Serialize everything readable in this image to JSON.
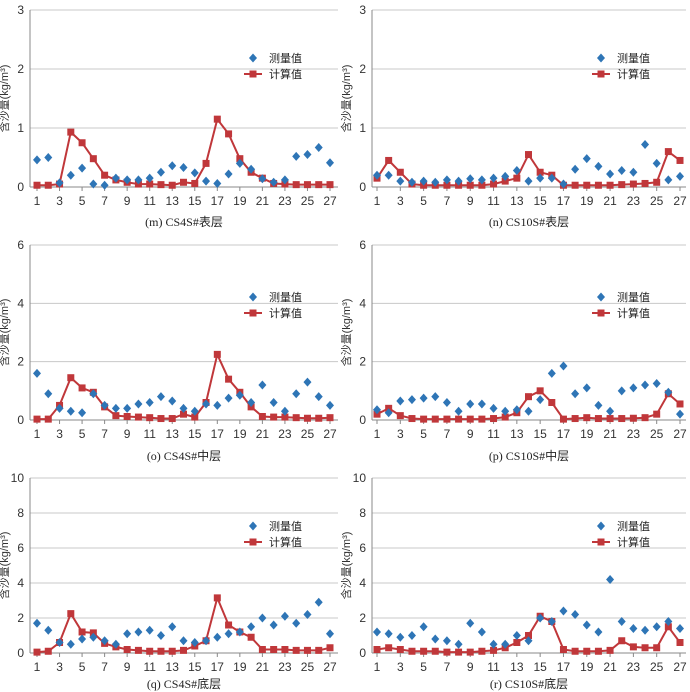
{
  "ylabel": "含沙量(kg/m³)",
  "legend": {
    "measured": "测量值",
    "computed": "计算值"
  },
  "colors": {
    "measured": "#2e75b6",
    "computed": "#c0373a",
    "grid": "#c8c8c8",
    "axis": "#888888"
  },
  "x_ticks": [
    1,
    3,
    5,
    7,
    9,
    11,
    13,
    15,
    17,
    19,
    21,
    23,
    25,
    27
  ],
  "chart_data": [
    {
      "type": "line",
      "caption": "(m) CS4S#表层",
      "ylabel": "含沙量(kg/m³)",
      "ylim": [
        0,
        3
      ],
      "yticks": [
        0,
        1,
        2,
        3
      ],
      "x": [
        1,
        2,
        3,
        4,
        5,
        6,
        7,
        8,
        9,
        10,
        11,
        12,
        13,
        14,
        15,
        16,
        17,
        18,
        19,
        20,
        21,
        22,
        23,
        24,
        25,
        26,
        27
      ],
      "series": [
        {
          "name": "测量值",
          "style": "markers",
          "values": [
            0.46,
            0.5,
            0.07,
            0.2,
            0.32,
            0.05,
            0.03,
            0.15,
            0.12,
            0.12,
            0.15,
            0.25,
            0.36,
            0.33,
            0.24,
            0.1,
            0.06,
            0.22,
            0.4,
            0.3,
            0.14,
            0.08,
            0.12,
            0.52,
            0.55,
            0.67,
            0.41
          ]
        },
        {
          "name": "计算值",
          "style": "line",
          "values": [
            0.03,
            0.03,
            0.05,
            0.93,
            0.75,
            0.48,
            0.2,
            0.12,
            0.08,
            0.05,
            0.05,
            0.04,
            0.03,
            0.08,
            0.06,
            0.4,
            1.15,
            0.9,
            0.48,
            0.25,
            0.15,
            0.06,
            0.05,
            0.04,
            0.04,
            0.04,
            0.04
          ]
        }
      ],
      "legend_position": "right"
    },
    {
      "type": "line",
      "caption": "(n) CS10S#表层",
      "ylabel": "含沙量(kg/m³)",
      "ylim": [
        0,
        3
      ],
      "yticks": [
        0,
        1,
        2,
        3
      ],
      "x": [
        1,
        2,
        3,
        4,
        5,
        6,
        7,
        8,
        9,
        10,
        11,
        12,
        13,
        14,
        15,
        16,
        17,
        18,
        19,
        20,
        21,
        22,
        23,
        24,
        25,
        26,
        27
      ],
      "series": [
        {
          "name": "测量值",
          "style": "markers",
          "values": [
            0.2,
            0.2,
            0.1,
            0.08,
            0.1,
            0.08,
            0.12,
            0.1,
            0.14,
            0.12,
            0.15,
            0.18,
            0.28,
            0.1,
            0.15,
            0.15,
            0.05,
            0.3,
            0.48,
            0.35,
            0.22,
            0.28,
            0.25,
            0.72,
            0.4,
            0.12,
            0.18
          ]
        },
        {
          "name": "计算值",
          "style": "line",
          "values": [
            0.15,
            0.45,
            0.25,
            0.05,
            0.03,
            0.03,
            0.03,
            0.03,
            0.03,
            0.03,
            0.05,
            0.1,
            0.15,
            0.55,
            0.25,
            0.2,
            0.03,
            0.03,
            0.03,
            0.03,
            0.03,
            0.04,
            0.05,
            0.06,
            0.08,
            0.6,
            0.45
          ]
        }
      ],
      "legend_position": "right"
    },
    {
      "type": "line",
      "caption": "(o) CS4S#中层",
      "ylabel": "含沙量(kg/m³)",
      "ylim": [
        0,
        6
      ],
      "yticks": [
        0,
        2,
        4,
        6
      ],
      "x": [
        1,
        2,
        3,
        4,
        5,
        6,
        7,
        8,
        9,
        10,
        11,
        12,
        13,
        14,
        15,
        16,
        17,
        18,
        19,
        20,
        21,
        22,
        23,
        24,
        25,
        26,
        27
      ],
      "series": [
        {
          "name": "测量值",
          "style": "markers",
          "values": [
            1.6,
            0.9,
            0.4,
            0.3,
            0.25,
            0.9,
            0.5,
            0.4,
            0.4,
            0.55,
            0.6,
            0.8,
            0.65,
            0.4,
            0.3,
            0.55,
            0.5,
            0.75,
            0.85,
            0.6,
            1.2,
            0.6,
            0.3,
            0.9,
            1.3,
            0.8,
            0.5
          ]
        },
        {
          "name": "计算值",
          "style": "line",
          "values": [
            0.03,
            0.03,
            0.5,
            1.45,
            1.1,
            0.95,
            0.45,
            0.15,
            0.12,
            0.1,
            0.08,
            0.05,
            0.05,
            0.2,
            0.1,
            0.6,
            2.25,
            1.4,
            0.95,
            0.45,
            0.12,
            0.1,
            0.1,
            0.08,
            0.06,
            0.06,
            0.08
          ]
        }
      ],
      "legend_position": "right"
    },
    {
      "type": "line",
      "caption": "(p) CS10S#中层",
      "ylabel": "含沙量(kg/m³)",
      "ylim": [
        0,
        6
      ],
      "yticks": [
        0,
        2,
        4,
        6
      ],
      "x": [
        1,
        2,
        3,
        4,
        5,
        6,
        7,
        8,
        9,
        10,
        11,
        12,
        13,
        14,
        15,
        16,
        17,
        18,
        19,
        20,
        21,
        22,
        23,
        24,
        25,
        26,
        27
      ],
      "series": [
        {
          "name": "测量值",
          "style": "markers",
          "values": [
            0.35,
            0.25,
            0.65,
            0.7,
            0.75,
            0.8,
            0.6,
            0.3,
            0.55,
            0.55,
            0.4,
            0.3,
            0.35,
            0.3,
            0.7,
            1.6,
            1.85,
            0.9,
            1.1,
            0.5,
            0.3,
            1.0,
            1.1,
            1.2,
            1.25,
            0.95,
            0.2
          ]
        },
        {
          "name": "计算值",
          "style": "line",
          "values": [
            0.2,
            0.4,
            0.15,
            0.05,
            0.03,
            0.03,
            0.03,
            0.03,
            0.03,
            0.03,
            0.05,
            0.1,
            0.25,
            0.8,
            1.0,
            0.6,
            0.03,
            0.05,
            0.08,
            0.05,
            0.05,
            0.05,
            0.06,
            0.08,
            0.2,
            0.9,
            0.55
          ]
        }
      ],
      "legend_position": "right"
    },
    {
      "type": "line",
      "caption": "(q) CS4S#底层",
      "ylabel": "含沙量(kg/m³)",
      "ylim": [
        0,
        10
      ],
      "yticks": [
        0,
        2,
        4,
        6,
        8,
        10
      ],
      "x": [
        1,
        2,
        3,
        4,
        5,
        6,
        7,
        8,
        9,
        10,
        11,
        12,
        13,
        14,
        15,
        16,
        17,
        18,
        19,
        20,
        21,
        22,
        23,
        24,
        25,
        26,
        27
      ],
      "series": [
        {
          "name": "测量值",
          "style": "markers",
          "values": [
            1.7,
            1.3,
            0.6,
            0.5,
            0.8,
            0.9,
            0.7,
            0.5,
            1.1,
            1.2,
            1.3,
            1.0,
            1.5,
            0.7,
            0.6,
            0.7,
            0.9,
            1.1,
            1.2,
            1.5,
            2.0,
            1.6,
            2.1,
            1.7,
            2.2,
            2.9,
            1.1
          ]
        },
        {
          "name": "计算值",
          "style": "line",
          "values": [
            0.05,
            0.1,
            0.6,
            2.25,
            1.2,
            1.15,
            0.55,
            0.35,
            0.2,
            0.15,
            0.1,
            0.1,
            0.1,
            0.15,
            0.4,
            0.7,
            3.15,
            1.6,
            1.2,
            0.9,
            0.2,
            0.2,
            0.2,
            0.15,
            0.15,
            0.15,
            0.3
          ]
        }
      ],
      "legend_position": "right"
    },
    {
      "type": "line",
      "caption": "(r) CS10S#底层",
      "ylabel": "含沙量(kg/m³)",
      "ylim": [
        0,
        10
      ],
      "yticks": [
        0,
        2,
        4,
        6,
        8,
        10
      ],
      "x": [
        1,
        2,
        3,
        4,
        5,
        6,
        7,
        8,
        9,
        10,
        11,
        12,
        13,
        14,
        15,
        16,
        17,
        18,
        19,
        20,
        21,
        22,
        23,
        24,
        25,
        26,
        27
      ],
      "series": [
        {
          "name": "测量值",
          "style": "markers",
          "values": [
            1.2,
            1.1,
            0.9,
            1.0,
            1.5,
            0.8,
            0.7,
            0.5,
            1.7,
            1.2,
            0.5,
            0.5,
            1.0,
            0.7,
            2.0,
            1.8,
            2.4,
            2.2,
            1.6,
            1.2,
            4.2,
            1.8,
            1.4,
            1.3,
            1.5,
            1.8,
            1.4
          ]
        },
        {
          "name": "计算值",
          "style": "line",
          "values": [
            0.2,
            0.3,
            0.2,
            0.1,
            0.1,
            0.1,
            0.05,
            0.05,
            0.05,
            0.1,
            0.15,
            0.3,
            0.6,
            1.0,
            2.1,
            1.8,
            0.2,
            0.1,
            0.1,
            0.1,
            0.15,
            0.7,
            0.35,
            0.3,
            0.3,
            1.5,
            0.6
          ]
        }
      ],
      "legend_position": "right"
    }
  ]
}
